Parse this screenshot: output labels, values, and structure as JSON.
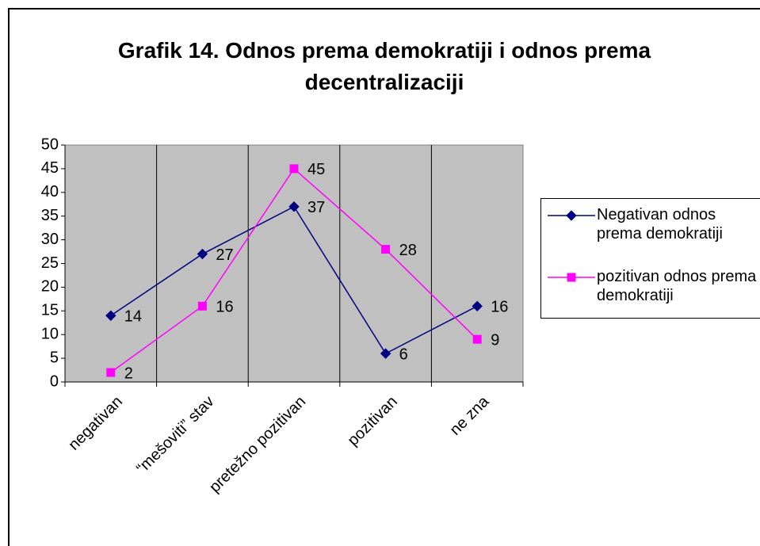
{
  "chart_data": {
    "type": "line",
    "title": "Grafik 14. Odnos prema demokratiji i odnos prema decentralizaciji",
    "categories": [
      "negativan",
      "“mešoviti” stav",
      "pretežno pozitivan",
      "pozitivan",
      "ne zna"
    ],
    "series": [
      {
        "name": "Negativan odnos prema demokratiji",
        "color": "#000080",
        "marker": "diamond",
        "values": [
          14,
          27,
          37,
          6,
          16
        ]
      },
      {
        "name": "pozitivan odnos prema demokratiji",
        "color": "#ff00ff",
        "marker": "square",
        "values": [
          2,
          16,
          45,
          28,
          9
        ]
      }
    ],
    "ylim": [
      0,
      50
    ],
    "yticks": [
      0,
      5,
      10,
      15,
      20,
      25,
      30,
      35,
      40,
      45,
      50
    ],
    "legend": "right",
    "plot_background": "#c0c0c0"
  }
}
